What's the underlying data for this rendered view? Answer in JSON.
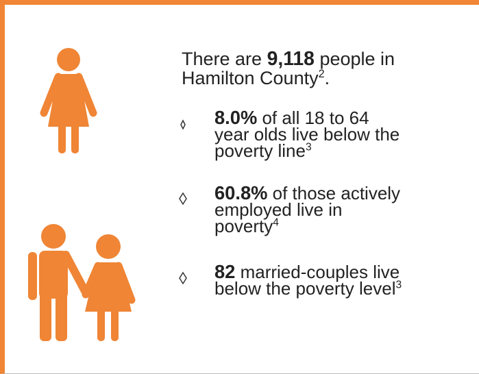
{
  "intro": {
    "before": "There are ",
    "bold": "9,118",
    "lines": [
      " people in",
      "Hamilton County"
    ],
    "sup": "2",
    "end": "."
  },
  "bullets": [
    {
      "bold": "8.0%",
      "lines": [
        " of all 18 to 64",
        "year olds live below the",
        "poverty line"
      ],
      "sup": "3"
    },
    {
      "bold": "60.8%",
      "lines": [
        " of those actively",
        "employed live in",
        "poverty"
      ],
      "sup": "4"
    },
    {
      "bold": "82",
      "lines": [
        " married-couples live",
        "below the poverty level"
      ],
      "sup": "3"
    }
  ]
}
